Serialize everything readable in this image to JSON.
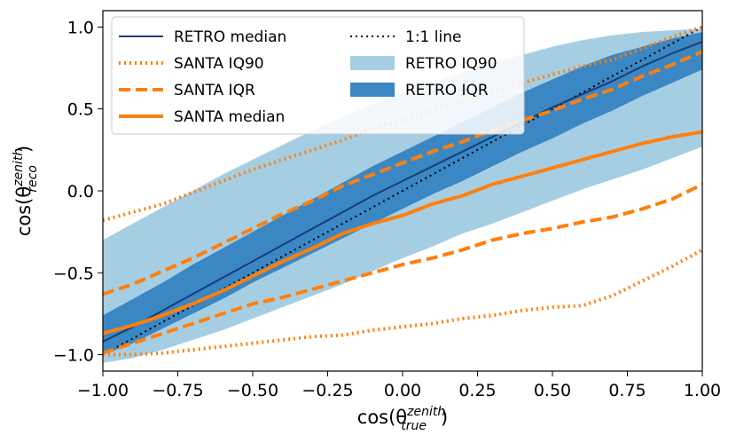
{
  "chart_data": {
    "type": "line",
    "xlabel_base": "cos(θ",
    "xlabel_sup": "zenith",
    "xlabel_sub": "true",
    "xlabel_close": ")",
    "ylabel_base": "cos(θ",
    "ylabel_sup": "zenith",
    "ylabel_sub": "reco",
    "ylabel_close": ")",
    "xlim": [
      -1.0,
      1.0
    ],
    "ylim": [
      -1.1,
      1.1
    ],
    "grid": false,
    "legend_position": "top-left",
    "x_ticks": [
      {
        "value": -1.0,
        "label": "−1.00"
      },
      {
        "value": -0.75,
        "label": "−0.75"
      },
      {
        "value": -0.5,
        "label": "−0.50"
      },
      {
        "value": -0.25,
        "label": "−0.25"
      },
      {
        "value": 0.0,
        "label": "0.00"
      },
      {
        "value": 0.25,
        "label": "0.25"
      },
      {
        "value": 0.5,
        "label": "0.50"
      },
      {
        "value": 0.75,
        "label": "0.75"
      },
      {
        "value": 1.0,
        "label": "1.00"
      }
    ],
    "y_ticks": [
      {
        "value": -1.0,
        "label": "−1.0"
      },
      {
        "value": -0.5,
        "label": "−0.5"
      },
      {
        "value": 0.0,
        "label": "0.0"
      },
      {
        "value": 0.5,
        "label": "0.5"
      },
      {
        "value": 1.0,
        "label": "1.0"
      }
    ],
    "x": [
      -1.0,
      -0.9,
      -0.8,
      -0.7,
      -0.6,
      -0.5,
      -0.4,
      -0.3,
      -0.2,
      -0.1,
      0.0,
      0.1,
      0.2,
      0.3,
      0.4,
      0.5,
      0.6,
      0.7,
      0.8,
      0.9,
      1.0
    ],
    "bands": [
      {
        "name": "RETRO IQ90",
        "color": "#a6cee3",
        "lower": [
          -1.05,
          -1.02,
          -0.97,
          -0.91,
          -0.85,
          -0.78,
          -0.71,
          -0.64,
          -0.57,
          -0.49,
          -0.41,
          -0.34,
          -0.26,
          -0.2,
          -0.13,
          -0.06,
          0.01,
          0.07,
          0.13,
          0.2,
          0.27
        ],
        "upper": [
          -0.3,
          -0.2,
          -0.1,
          0.0,
          0.1,
          0.19,
          0.28,
          0.37,
          0.45,
          0.53,
          0.6,
          0.66,
          0.72,
          0.78,
          0.83,
          0.88,
          0.92,
          0.95,
          0.97,
          0.98,
          0.99
        ]
      },
      {
        "name": "RETRO IQR",
        "color": "#3a87c4",
        "lower": [
          -1.0,
          -0.93,
          -0.84,
          -0.75,
          -0.66,
          -0.56,
          -0.47,
          -0.38,
          -0.29,
          -0.2,
          -0.11,
          -0.02,
          0.06,
          0.15,
          0.24,
          0.32,
          0.41,
          0.49,
          0.58,
          0.66,
          0.74
        ],
        "upper": [
          -0.76,
          -0.66,
          -0.56,
          -0.45,
          -0.35,
          -0.25,
          -0.15,
          -0.05,
          0.05,
          0.15,
          0.24,
          0.33,
          0.42,
          0.51,
          0.6,
          0.68,
          0.76,
          0.83,
          0.88,
          0.93,
          0.97
        ]
      }
    ],
    "series": [
      {
        "name": "RETRO median",
        "color": "#1a3d73",
        "style": "solid",
        "width": 2,
        "values": [
          -0.92,
          -0.83,
          -0.73,
          -0.63,
          -0.53,
          -0.43,
          -0.33,
          -0.23,
          -0.13,
          -0.03,
          0.06,
          0.15,
          0.24,
          0.33,
          0.42,
          0.51,
          0.59,
          0.67,
          0.76,
          0.84,
          0.91
        ]
      },
      {
        "name": "1:1 line",
        "color": "#000000",
        "style": "dotted",
        "width": 2,
        "values": [
          -1.0,
          -0.9,
          -0.8,
          -0.7,
          -0.6,
          -0.5,
          -0.4,
          -0.3,
          -0.2,
          -0.1,
          0.0,
          0.1,
          0.2,
          0.3,
          0.4,
          0.5,
          0.6,
          0.7,
          0.8,
          0.9,
          1.0
        ]
      },
      {
        "name": "SANTA IQ90",
        "color": "#ff7f0e",
        "style": "dotted",
        "width": 4,
        "values": [
          -0.18,
          -0.13,
          -0.08,
          -0.01,
          0.06,
          0.13,
          0.19,
          0.25,
          0.31,
          0.38,
          0.43,
          0.49,
          0.55,
          0.6,
          0.66,
          0.71,
          0.76,
          0.8,
          0.87,
          0.94,
          1.0
        ]
      },
      {
        "name": "SANTA IQ90",
        "color": "#ff7f0e",
        "style": "dotted",
        "width": 4,
        "values": [
          -1.0,
          -1.0,
          -0.99,
          -0.97,
          -0.95,
          -0.93,
          -0.91,
          -0.89,
          -0.88,
          -0.85,
          -0.83,
          -0.81,
          -0.78,
          -0.76,
          -0.73,
          -0.71,
          -0.7,
          -0.64,
          -0.55,
          -0.46,
          -0.36
        ]
      },
      {
        "name": "SANTA IQR",
        "color": "#ff7f0e",
        "style": "dashed",
        "width": 4,
        "values": [
          -0.63,
          -0.57,
          -0.49,
          -0.41,
          -0.32,
          -0.23,
          -0.14,
          -0.06,
          0.03,
          0.1,
          0.17,
          0.24,
          0.3,
          0.37,
          0.43,
          0.49,
          0.56,
          0.62,
          0.7,
          0.77,
          0.85
        ]
      },
      {
        "name": "SANTA IQR",
        "color": "#ff7f0e",
        "style": "dashed",
        "width": 4,
        "values": [
          -0.99,
          -0.93,
          -0.87,
          -0.81,
          -0.75,
          -0.69,
          -0.65,
          -0.6,
          -0.55,
          -0.5,
          -0.45,
          -0.41,
          -0.36,
          -0.3,
          -0.26,
          -0.23,
          -0.19,
          -0.16,
          -0.11,
          -0.05,
          0.04
        ]
      },
      {
        "name": "SANTA median",
        "color": "#ff7f0e",
        "style": "solid",
        "width": 4,
        "values": [
          -0.87,
          -0.82,
          -0.76,
          -0.69,
          -0.61,
          -0.52,
          -0.43,
          -0.35,
          -0.26,
          -0.2,
          -0.15,
          -0.08,
          -0.03,
          0.04,
          0.09,
          0.14,
          0.19,
          0.24,
          0.29,
          0.33,
          0.36
        ]
      }
    ],
    "legend": {
      "col1": [
        {
          "label": "RETRO median",
          "kind": "line",
          "color": "#1a3d73",
          "style": "solid",
          "width": 2
        },
        {
          "label": "SANTA IQ90",
          "kind": "line",
          "color": "#ff7f0e",
          "style": "dotted",
          "width": 4
        },
        {
          "label": "SANTA IQR",
          "kind": "line",
          "color": "#ff7f0e",
          "style": "dashed",
          "width": 4
        },
        {
          "label": "SANTA median",
          "kind": "line",
          "color": "#ff7f0e",
          "style": "solid",
          "width": 4
        }
      ],
      "col2": [
        {
          "label": "1:1 line",
          "kind": "line",
          "color": "#000000",
          "style": "dotted",
          "width": 2
        },
        {
          "label": "RETRO IQ90",
          "kind": "patch",
          "color": "#a6cee3"
        },
        {
          "label": "RETRO IQR",
          "kind": "patch",
          "color": "#3a87c4"
        }
      ]
    }
  }
}
